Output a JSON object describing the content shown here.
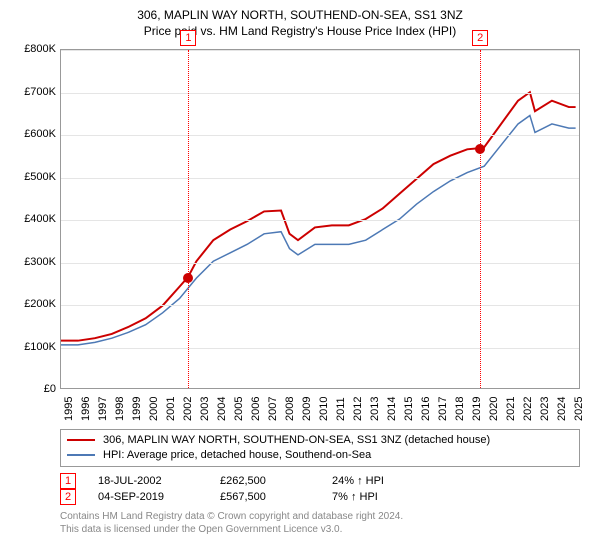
{
  "title_line1": "306, MAPLIN WAY NORTH, SOUTHEND-ON-SEA, SS1 3NZ",
  "title_line2": "Price paid vs. HM Land Registry's House Price Index (HPI)",
  "chart": {
    "type": "line",
    "background_color": "#ffffff",
    "grid_color": "#e5e5e5",
    "axis_color": "#999999",
    "xlim": [
      1995,
      2025.6
    ],
    "ylim": [
      0,
      800000
    ],
    "ytick_step": 100000,
    "yticks": [
      "£0",
      "£100K",
      "£200K",
      "£300K",
      "£400K",
      "£500K",
      "£600K",
      "£700K",
      "£800K"
    ],
    "xticks": [
      "1995",
      "1996",
      "1997",
      "1998",
      "1999",
      "2000",
      "2001",
      "2002",
      "2003",
      "2004",
      "2005",
      "2006",
      "2007",
      "2008",
      "2009",
      "2010",
      "2011",
      "2012",
      "2013",
      "2014",
      "2015",
      "2016",
      "2017",
      "2018",
      "2019",
      "2020",
      "2021",
      "2022",
      "2023",
      "2024",
      "2025"
    ],
    "xtick_rotation": -90,
    "label_fontsize": 11,
    "series": [
      {
        "name": "price_paid",
        "label": "306, MAPLIN WAY NORTH, SOUTHEND-ON-SEA, SS1 3NZ (detached house)",
        "color": "#cc0000",
        "line_width": 2,
        "x": [
          1995,
          1996,
          1997,
          1998,
          1999,
          2000,
          2001,
          2002,
          2002.5,
          2003,
          2004,
          2005,
          2006,
          2007,
          2008,
          2008.5,
          2009,
          2010,
          2011,
          2012,
          2013,
          2014,
          2015,
          2016,
          2017,
          2018,
          2019,
          2019.67,
          2020,
          2021,
          2022,
          2022.7,
          2023,
          2024,
          2025,
          2025.4
        ],
        "y": [
          112000,
          112000,
          118000,
          128000,
          145000,
          165000,
          195000,
          240000,
          262500,
          300000,
          350000,
          375000,
          395000,
          418000,
          420000,
          365000,
          350000,
          380000,
          385000,
          385000,
          400000,
          425000,
          460000,
          495000,
          530000,
          550000,
          565000,
          567500,
          570000,
          625000,
          680000,
          700000,
          655000,
          680000,
          665000,
          665000
        ]
      },
      {
        "name": "hpi",
        "label": "HPI: Average price, detached house, Southend-on-Sea",
        "color": "#4d79b5",
        "line_width": 1.5,
        "x": [
          1995,
          1996,
          1997,
          1998,
          1999,
          2000,
          2001,
          2002,
          2003,
          2004,
          2005,
          2006,
          2007,
          2008,
          2008.5,
          2009,
          2010,
          2011,
          2012,
          2013,
          2014,
          2015,
          2016,
          2017,
          2018,
          2019,
          2020,
          2021,
          2022,
          2022.7,
          2023,
          2024,
          2025,
          2025.4
        ],
        "y": [
          102000,
          102000,
          108000,
          118000,
          132000,
          150000,
          178000,
          212000,
          260000,
          300000,
          320000,
          340000,
          365000,
          370000,
          330000,
          315000,
          340000,
          340000,
          340000,
          350000,
          375000,
          400000,
          435000,
          465000,
          490000,
          510000,
          525000,
          575000,
          625000,
          645000,
          605000,
          625000,
          615000,
          615000
        ]
      }
    ],
    "markers": [
      {
        "n": 1,
        "x": 2002.5,
        "y": 262500
      },
      {
        "n": 2,
        "x": 2019.67,
        "y": 567500
      }
    ],
    "marker_line_color": "#ff0000",
    "marker_dot_color": "#cc0000",
    "marker_box_border": "#ff0000"
  },
  "legend": {
    "items": [
      {
        "color": "#cc0000",
        "label": "306, MAPLIN WAY NORTH, SOUTHEND-ON-SEA, SS1 3NZ (detached house)"
      },
      {
        "color": "#4d79b5",
        "label": "HPI: Average price, detached house, Southend-on-Sea"
      }
    ]
  },
  "sales": [
    {
      "n": "1",
      "date": "18-JUL-2002",
      "price": "£262,500",
      "pct": "24% ↑ HPI"
    },
    {
      "n": "2",
      "date": "04-SEP-2019",
      "price": "£567,500",
      "pct": "7% ↑ HPI"
    }
  ],
  "footer_line1": "Contains HM Land Registry data © Crown copyright and database right 2024.",
  "footer_line2": "This data is licensed under the Open Government Licence v3.0."
}
